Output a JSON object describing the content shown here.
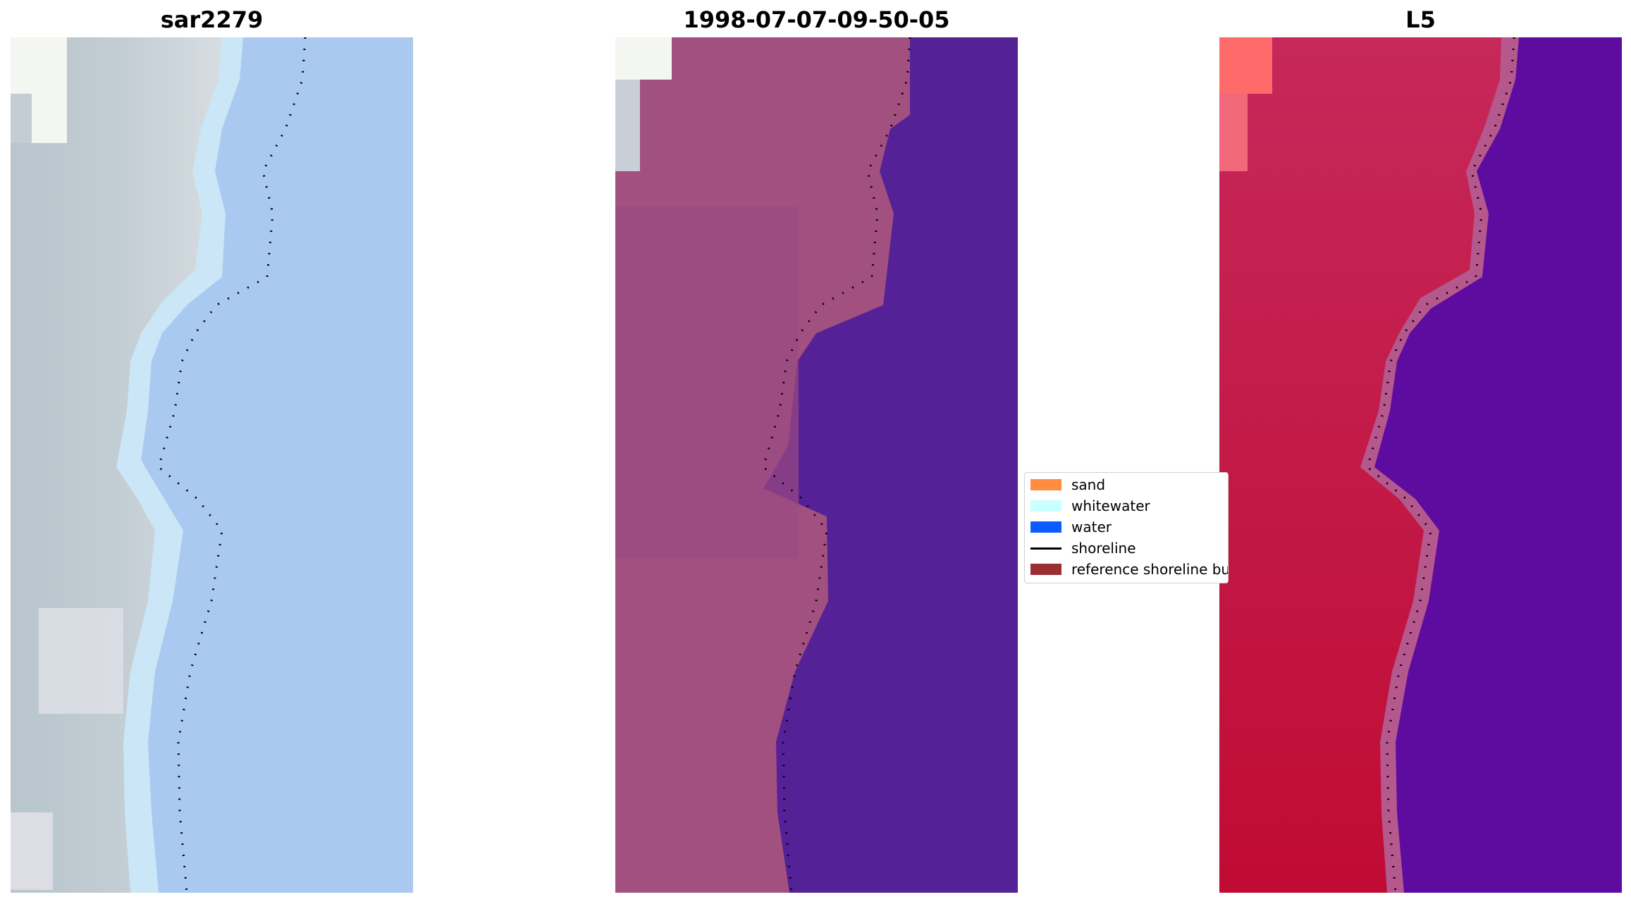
{
  "panels": [
    {
      "title": "sar2279"
    },
    {
      "title": "1998-07-07-09-50-05"
    },
    {
      "title": "L5"
    }
  ],
  "legend": {
    "items": [
      {
        "label": "sand",
        "color": "#ff8c40",
        "kind": "patch"
      },
      {
        "label": "whitewater",
        "color": "#c8ffff",
        "kind": "patch"
      },
      {
        "label": "water",
        "color": "#0a5cff",
        "kind": "patch"
      },
      {
        "label": "shoreline",
        "color": "#000000",
        "kind": "line"
      },
      {
        "label": "reference shoreline buffer",
        "color": "#9b2d35",
        "kind": "patch"
      }
    ]
  },
  "colors": {
    "rgb_land": "#b9c4cb",
    "rgb_water": "#a9cbf2",
    "rgb_white": "#f5f8f4",
    "class_land": "#a1507f",
    "class_water": "#542197",
    "ndwi_land": "#c52a55",
    "ndwi_water": "#5d0c9f"
  }
}
